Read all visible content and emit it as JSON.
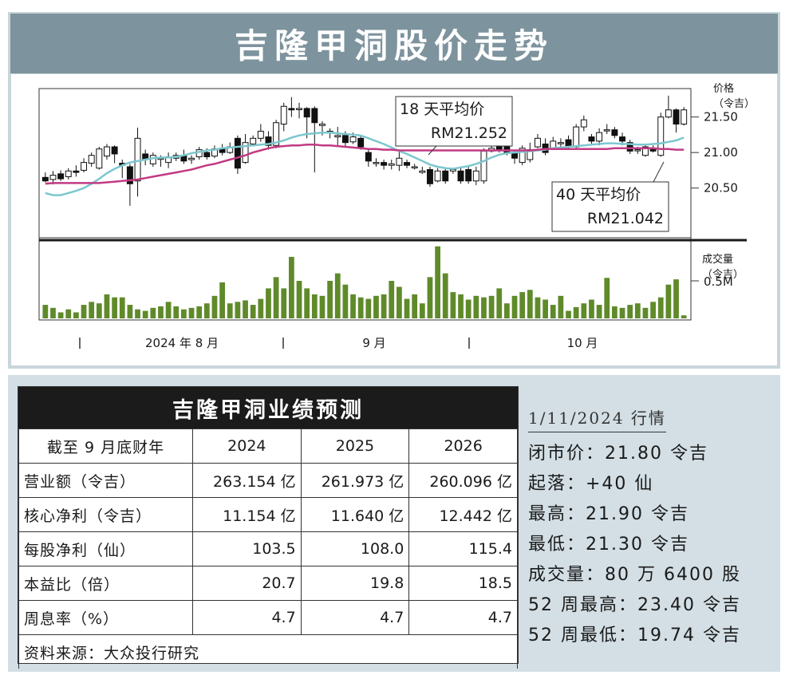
{
  "title": "吉隆甲洞股价走势",
  "chart_data": [
    {
      "type": "candlestick",
      "ylabel": "价格\n（令吉）",
      "ylabel_lines": [
        "价格",
        "（令吉）"
      ],
      "yticks": [
        "21.50",
        "21.00",
        "20.50"
      ],
      "ytick_values": [
        21.5,
        21.0,
        20.5
      ],
      "ylim": [
        19.8,
        21.9
      ],
      "xlabels": [
        "2024 年 8 月",
        "9 月",
        "10 月"
      ],
      "candles": [
        [
          20.65,
          20.6,
          20.72,
          20.58
        ],
        [
          20.62,
          20.68,
          20.74,
          20.55
        ],
        [
          20.7,
          20.63,
          20.75,
          20.6
        ],
        [
          20.66,
          20.74,
          20.78,
          20.62
        ],
        [
          20.74,
          20.72,
          20.82,
          20.66
        ],
        [
          20.75,
          20.86,
          20.92,
          20.72
        ],
        [
          20.85,
          20.96,
          21.0,
          20.8
        ],
        [
          20.78,
          21.05,
          21.08,
          20.76
        ],
        [
          20.95,
          21.08,
          21.12,
          20.9
        ],
        [
          21.08,
          20.98,
          21.1,
          20.85
        ],
        [
          20.85,
          20.82,
          20.9,
          20.64
        ],
        [
          20.8,
          20.56,
          20.84,
          20.25
        ],
        [
          20.6,
          21.2,
          21.35,
          20.38
        ],
        [
          20.98,
          20.9,
          21.04,
          20.82
        ],
        [
          20.84,
          20.96,
          21.0,
          20.8
        ],
        [
          20.92,
          20.92,
          20.96,
          20.8
        ],
        [
          20.86,
          20.94,
          21.0,
          20.78
        ],
        [
          20.92,
          20.96,
          21.0,
          20.88
        ],
        [
          20.96,
          20.88,
          21.04,
          20.84
        ],
        [
          20.9,
          20.92,
          20.96,
          20.84
        ],
        [
          20.94,
          21.04,
          21.08,
          20.9
        ],
        [
          21.0,
          20.94,
          21.06,
          20.9
        ],
        [
          20.95,
          21.05,
          21.1,
          20.92
        ],
        [
          21.05,
          21.0,
          21.12,
          20.96
        ],
        [
          21.0,
          21.08,
          21.14,
          20.98
        ],
        [
          21.2,
          20.78,
          21.24,
          20.7
        ],
        [
          20.86,
          21.14,
          21.26,
          20.84
        ],
        [
          21.12,
          21.2,
          21.24,
          21.1
        ],
        [
          21.2,
          21.3,
          21.4,
          21.15
        ],
        [
          21.22,
          21.1,
          21.3,
          21.04
        ],
        [
          21.1,
          21.42,
          21.46,
          21.06
        ],
        [
          21.4,
          21.65,
          21.7,
          21.3
        ],
        [
          21.62,
          21.6,
          21.78,
          21.5
        ],
        [
          21.62,
          21.62,
          21.7,
          21.48
        ],
        [
          21.62,
          21.5,
          21.64,
          21.2
        ],
        [
          21.62,
          21.42,
          21.65,
          20.72
        ],
        [
          21.38,
          21.4,
          21.44,
          21.24
        ],
        [
          21.28,
          21.3,
          21.34,
          21.2
        ],
        [
          21.22,
          21.24,
          21.36,
          21.1
        ],
        [
          21.24,
          21.14,
          21.3,
          21.08
        ],
        [
          21.15,
          21.22,
          21.28,
          21.12
        ],
        [
          21.2,
          21.08,
          21.24,
          21.04
        ],
        [
          21.0,
          20.88,
          21.04,
          20.8
        ],
        [
          20.86,
          20.86,
          20.92,
          20.8
        ],
        [
          20.86,
          20.82,
          20.9,
          20.76
        ],
        [
          20.82,
          20.84,
          20.9,
          20.76
        ],
        [
          20.82,
          20.92,
          21.02,
          20.74
        ],
        [
          20.86,
          20.82,
          20.9,
          20.78
        ],
        [
          20.8,
          20.8,
          20.84,
          20.76
        ],
        [
          20.72,
          20.74,
          20.8,
          20.7
        ],
        [
          20.76,
          20.56,
          20.8,
          20.52
        ],
        [
          20.6,
          20.74,
          20.78,
          20.58
        ],
        [
          20.74,
          20.6,
          20.78,
          20.56
        ],
        [
          20.74,
          20.76,
          20.78,
          20.7
        ],
        [
          20.74,
          20.6,
          20.78,
          20.56
        ],
        [
          20.76,
          20.6,
          20.8,
          20.56
        ],
        [
          20.6,
          20.74,
          20.8,
          20.54
        ],
        [
          20.6,
          21.02,
          21.06,
          20.56
        ],
        [
          21.02,
          21.06,
          21.1,
          21.0
        ],
        [
          21.08,
          21.04,
          21.12,
          21.0
        ],
        [
          21.08,
          21.0,
          21.12,
          20.96
        ],
        [
          21.0,
          20.92,
          21.04,
          20.84
        ],
        [
          20.86,
          21.06,
          21.1,
          20.82
        ],
        [
          20.9,
          21.04,
          21.14,
          20.86
        ],
        [
          21.08,
          21.2,
          21.26,
          21.06
        ],
        [
          21.12,
          21.0,
          21.2,
          20.96
        ],
        [
          21.06,
          21.16,
          21.22,
          21.04
        ],
        [
          21.14,
          21.14,
          21.2,
          21.08
        ],
        [
          21.18,
          21.08,
          21.24,
          21.04
        ],
        [
          21.08,
          21.36,
          21.4,
          21.04
        ],
        [
          21.36,
          21.46,
          21.52,
          21.3
        ],
        [
          21.22,
          21.16,
          21.26,
          21.12
        ],
        [
          21.16,
          21.28,
          21.34,
          21.1
        ],
        [
          21.32,
          21.32,
          21.4,
          21.26
        ],
        [
          21.32,
          21.24,
          21.36,
          21.2
        ],
        [
          21.22,
          21.16,
          21.28,
          21.1
        ],
        [
          21.14,
          21.02,
          21.18,
          20.98
        ],
        [
          21.04,
          21.04,
          21.08,
          20.98
        ],
        [
          20.96,
          21.08,
          21.12,
          20.94
        ],
        [
          21.06,
          21.02,
          21.1,
          21.0
        ],
        [
          20.96,
          21.5,
          21.56,
          20.94
        ],
        [
          21.5,
          21.6,
          21.8,
          21.48
        ],
        [
          21.6,
          21.4,
          21.62,
          21.28
        ],
        [
          21.4,
          21.6,
          21.64,
          21.38
        ]
      ],
      "ma18_label": [
        "18 天平均价",
        "RM21.252"
      ],
      "ma18": [
        20.43,
        20.4,
        20.4,
        20.43,
        20.46,
        20.5,
        20.56,
        20.63,
        20.71,
        20.77,
        20.82,
        20.86,
        20.88,
        20.9,
        20.92,
        20.93,
        20.93,
        20.94,
        20.96,
        20.99,
        21.01,
        21.03,
        21.04,
        21.06,
        21.07,
        21.08,
        21.09,
        21.1,
        21.11,
        21.12,
        21.14,
        21.17,
        21.21,
        21.24,
        21.26,
        21.27,
        21.28,
        21.28,
        21.27,
        21.26,
        21.25,
        21.24,
        21.2,
        21.16,
        21.12,
        21.07,
        21.02,
        20.98,
        20.93,
        20.88,
        20.83,
        20.8,
        20.78,
        20.77,
        20.79,
        20.81,
        20.84,
        20.88,
        20.93,
        20.97,
        20.99,
        21.0,
        21.01,
        21.02,
        21.03,
        21.04,
        21.06,
        21.07,
        21.08,
        21.09,
        21.1,
        21.11,
        21.12,
        21.13,
        21.13,
        21.12,
        21.12,
        21.11,
        21.11,
        21.12,
        21.13,
        21.15,
        21.17,
        21.21
      ],
      "ma40_label": [
        "40 天平均价",
        "RM21.042"
      ],
      "ma40": [
        20.56,
        20.57,
        20.57,
        20.57,
        20.57,
        20.57,
        20.57,
        20.57,
        20.58,
        20.59,
        20.6,
        20.61,
        20.62,
        20.64,
        20.66,
        20.68,
        20.7,
        20.72,
        20.74,
        20.76,
        20.79,
        20.82,
        20.84,
        20.87,
        20.9,
        20.93,
        20.96,
        21.0,
        21.03,
        21.06,
        21.08,
        21.09,
        21.1,
        21.1,
        21.11,
        21.11,
        21.1,
        21.1,
        21.09,
        21.08,
        21.07,
        21.06,
        21.05,
        21.05,
        21.04,
        21.04,
        21.03,
        21.03,
        21.03,
        21.03,
        21.03,
        21.03,
        21.03,
        21.03,
        21.03,
        21.03,
        21.03,
        21.03,
        21.03,
        21.03,
        21.03,
        21.03,
        21.03,
        21.03,
        21.04,
        21.05,
        21.05,
        21.05,
        21.05,
        21.05,
        21.05,
        21.05,
        21.05,
        21.05,
        21.06,
        21.06,
        21.06,
        21.06,
        21.06,
        21.06,
        21.05,
        21.05,
        21.04,
        21.04
      ]
    },
    {
      "type": "bar",
      "ylabel_lines": [
        "成交量",
        "（令吉）"
      ],
      "yticks": [
        "0.5M"
      ],
      "ytick_values": [
        0.5
      ],
      "ylim": [
        0,
        1.0
      ],
      "values": [
        0.18,
        0.14,
        0.08,
        0.12,
        0.08,
        0.18,
        0.22,
        0.2,
        0.32,
        0.28,
        0.28,
        0.18,
        0.12,
        0.1,
        0.14,
        0.16,
        0.22,
        0.16,
        0.12,
        0.14,
        0.16,
        0.2,
        0.3,
        0.48,
        0.2,
        0.22,
        0.24,
        0.18,
        0.26,
        0.4,
        0.55,
        0.4,
        0.82,
        0.5,
        0.4,
        0.32,
        0.3,
        0.5,
        0.6,
        0.45,
        0.32,
        0.28,
        0.26,
        0.3,
        0.32,
        0.5,
        0.42,
        0.26,
        0.32,
        0.2,
        0.55,
        0.96,
        0.6,
        0.35,
        0.32,
        0.25,
        0.3,
        0.28,
        0.3,
        0.4,
        0.2,
        0.3,
        0.35,
        0.38,
        0.28,
        0.25,
        0.18,
        0.3,
        0.1,
        0.15,
        0.2,
        0.25,
        0.18,
        0.54,
        0.16,
        0.14,
        0.18,
        0.2,
        0.14,
        0.22,
        0.28,
        0.45,
        0.52,
        0.04
      ]
    }
  ],
  "forecast": {
    "title": "吉隆甲洞业绩预测",
    "header": [
      "截至 9 月底财年",
      "2024",
      "2025",
      "2026"
    ],
    "rows": [
      [
        "营业额（令吉）",
        "263.154 亿",
        "261.973 亿",
        "260.096 亿"
      ],
      [
        "核心净利（令吉）",
        "11.154 亿",
        "11.640 亿",
        "12.442 亿"
      ],
      [
        "每股净利（仙）",
        "103.5",
        "108.0",
        "115.4"
      ],
      [
        "本益比（倍）",
        "20.7",
        "19.8",
        "18.5"
      ],
      [
        "周息率（%）",
        "4.7",
        "4.7",
        "4.7"
      ]
    ],
    "source": "资料来源：大众投行研究"
  },
  "market": {
    "date": "1/11/2024 行情",
    "lines": [
      "闭市价：21.80 令吉",
      "起落：+40 仙",
      "最高：21.90 令吉",
      "最低：21.30 令吉",
      "成交量：80 万 6400 股",
      "52 周最高：23.40 令吉",
      "52 周最低：19.74 令吉"
    ]
  },
  "colors": {
    "title_bar": "#7d939d",
    "frame": "#c9d5db",
    "candle_up": "#ffffff",
    "candle_down": "#111111",
    "ma18": "#7cc7cf",
    "ma40": "#c23a83",
    "volume": "#5f8a2a",
    "table_header": "#1b1b1b"
  }
}
